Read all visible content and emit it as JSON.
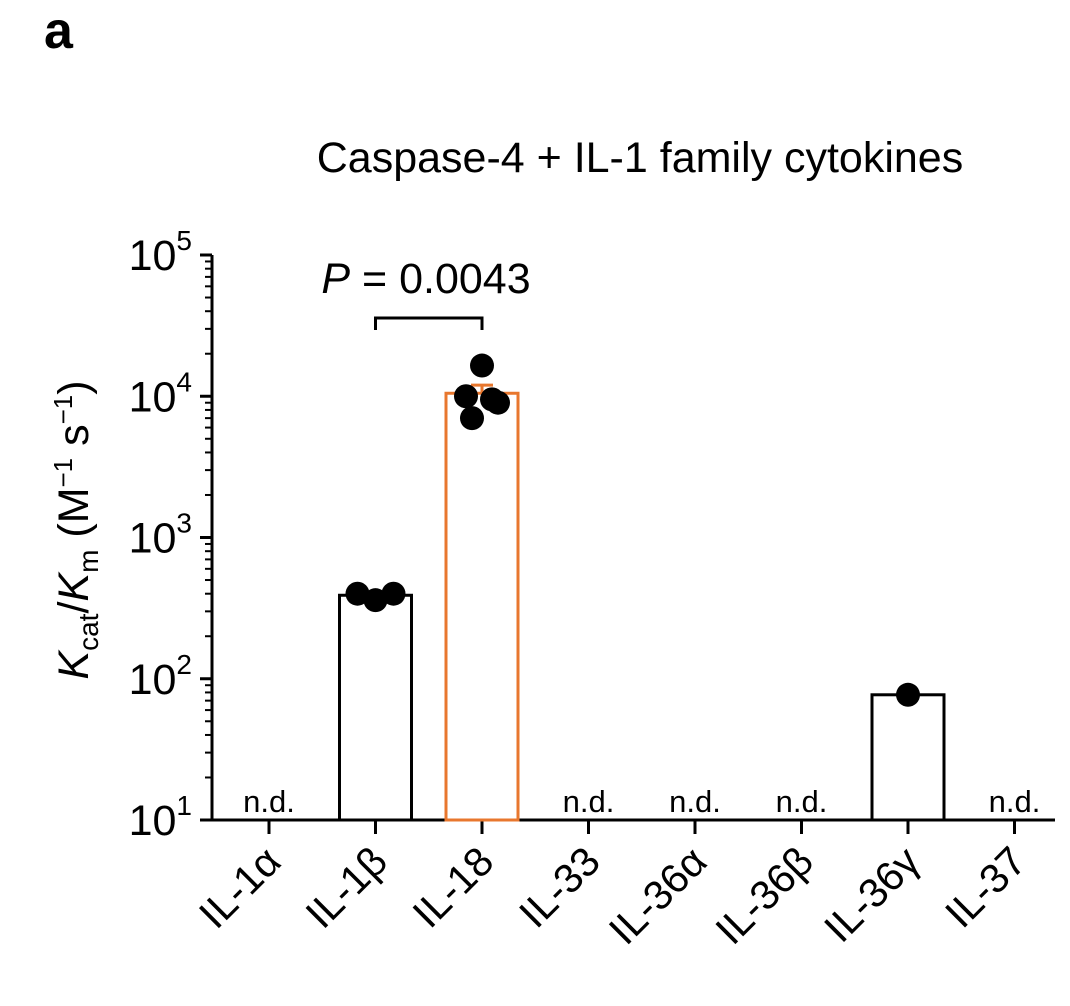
{
  "panel_label": "a",
  "chart_data": {
    "type": "bar",
    "title": "Caspase-4 + IL-1 family cytokines",
    "ylabel": {
      "k": "K",
      "cat": "cat",
      "slash": "/",
      "km": "K",
      "m": "m",
      "unit_open": " (M",
      "unit_exp1": "−1",
      "unit_s": " s",
      "unit_exp2": "−1",
      "unit_close": ")"
    },
    "yscale": "log",
    "ylim": [
      10,
      100000
    ],
    "yticks": [
      {
        "value": 10,
        "base": "10",
        "exp": "1"
      },
      {
        "value": 100,
        "base": "10",
        "exp": "2"
      },
      {
        "value": 1000,
        "base": "10",
        "exp": "3"
      },
      {
        "value": 10000,
        "base": "10",
        "exp": "4"
      },
      {
        "value": 100000,
        "base": "10",
        "exp": "5"
      }
    ],
    "categories": [
      "IL-1α",
      "IL-1β",
      "IL-18",
      "IL-33",
      "IL-36α",
      "IL-36β",
      "IL-36γ",
      "IL-37"
    ],
    "values": [
      null,
      390,
      10500,
      null,
      null,
      null,
      77,
      null
    ],
    "error_upper": [
      null,
      null,
      12000,
      null,
      null,
      null,
      null,
      null
    ],
    "points": [
      [],
      [
        400,
        360,
        400
      ],
      [
        16500,
        10000,
        9000,
        7000,
        9500
      ],
      [],
      [],
      [],
      [
        77
      ],
      []
    ],
    "not_detected_label": "n.d.",
    "not_detected": [
      true,
      false,
      false,
      true,
      true,
      true,
      false,
      true
    ],
    "colors": {
      "default_edge": "#000000",
      "highlight_edge": "#E8772E",
      "point": "#000000"
    },
    "highlight_index": 2,
    "annotation": {
      "from_index": 1,
      "to_index": 2,
      "italic": "P",
      "text": " = 0.0043",
      "value": 0.0043
    }
  }
}
